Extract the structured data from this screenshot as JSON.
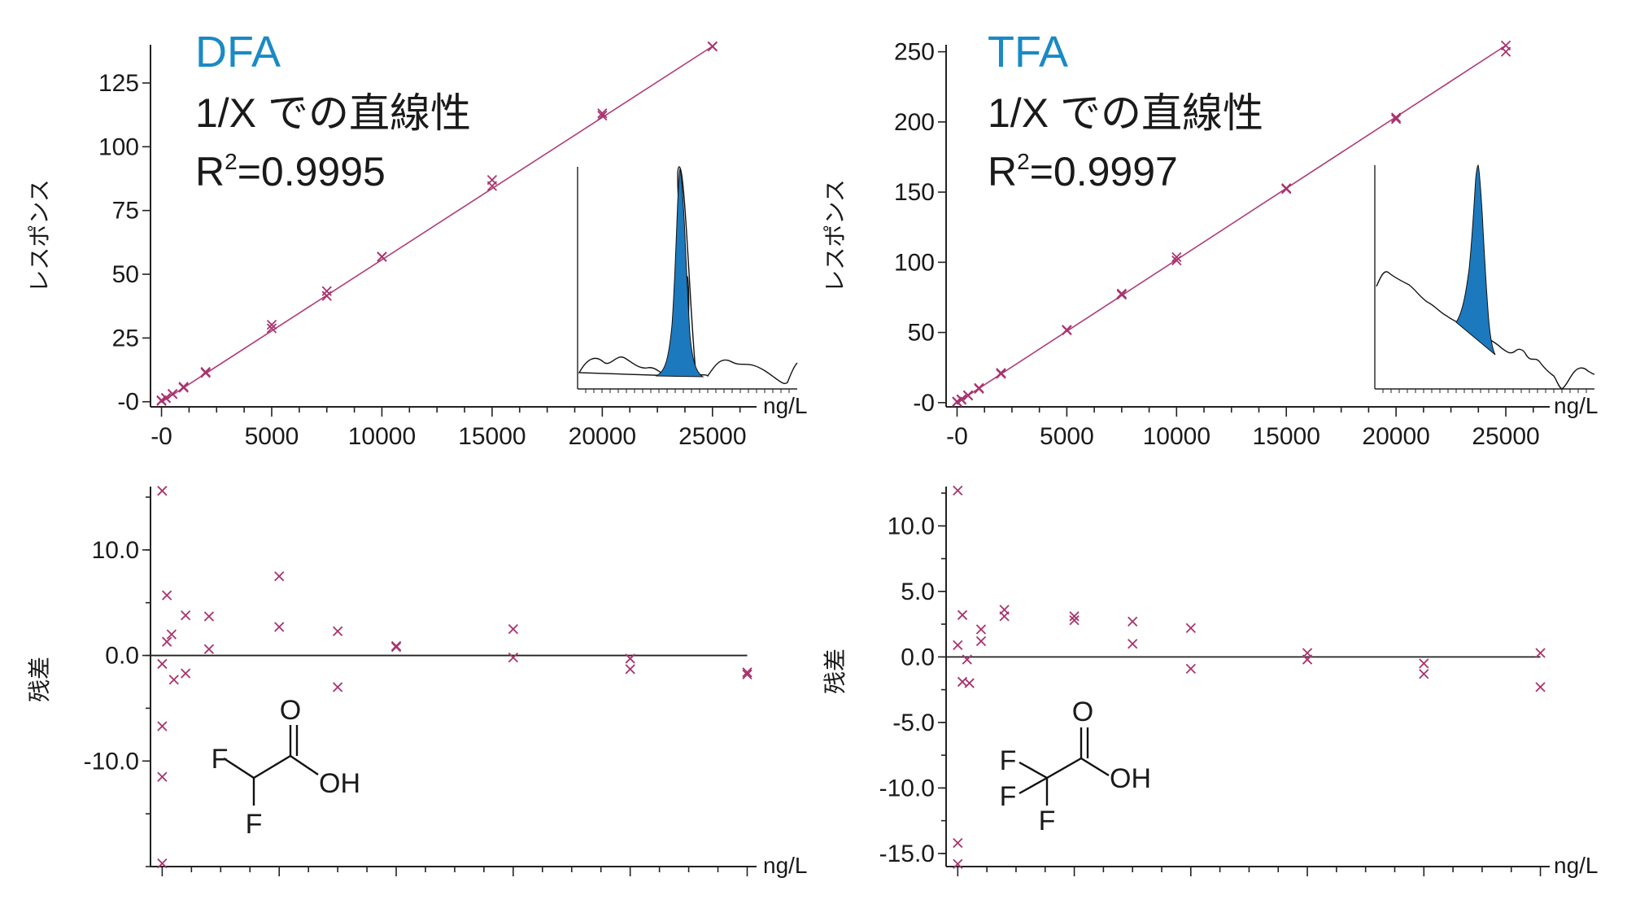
{
  "colors": {
    "title": "#1a8ac4",
    "marker": "#a8336e",
    "fit_line": "#b03a78",
    "peak_fill": "#1d79bd"
  },
  "chart_data": [
    {
      "id": "dfa_cal",
      "type": "scatter",
      "title": "DFA",
      "subtitle": "1/X での直線性",
      "r2_label": "R",
      "r2_sup": "2",
      "r2_value": "=0.9995",
      "xlabel": "ng/L",
      "ylabel": "レスポンス",
      "xlim": [
        -500,
        27000
      ],
      "ylim": [
        -2,
        140
      ],
      "xticks": [
        0,
        5000,
        10000,
        15000,
        20000,
        25000
      ],
      "xtick_labels": [
        "-0",
        "5000",
        "10000",
        "15000",
        "20000",
        "25000"
      ],
      "yticks": [
        0,
        25,
        50,
        75,
        100,
        125
      ],
      "ytick_labels": [
        "-0",
        "25",
        "50",
        "75",
        "100",
        "125"
      ],
      "fit_line": {
        "slope": 0.00558,
        "intercept": -0.1,
        "x_range": [
          0,
          25000
        ]
      },
      "x": [
        0,
        0,
        200,
        200,
        500,
        500,
        1000,
        1000,
        2000,
        2000,
        5000,
        5000,
        7500,
        7500,
        10000,
        10000,
        15000,
        15000,
        20000,
        20000,
        25000,
        25000
      ],
      "y": [
        0.3,
        0.6,
        1.4,
        1.5,
        3.0,
        3.1,
        5.5,
        5.9,
        11.3,
        11.7,
        28.8,
        30.2,
        41.5,
        43.4,
        56.8,
        56.9,
        84.6,
        87.0,
        112.2,
        113.1,
        139.3,
        139.4
      ],
      "inset": "chromatogram with single shaded peak"
    },
    {
      "id": "tfa_cal",
      "type": "scatter",
      "title": "TFA",
      "subtitle": "1/X での直線性",
      "r2_label": "R",
      "r2_sup": "2",
      "r2_value": "=0.9997",
      "xlabel": "ng/L",
      "ylabel": "レスポンス",
      "xlim": [
        -500,
        27000
      ],
      "ylim": [
        -3,
        255
      ],
      "xticks": [
        0,
        5000,
        10000,
        15000,
        20000,
        25000
      ],
      "xtick_labels": [
        "-0",
        "5000",
        "10000",
        "15000",
        "20000",
        "25000"
      ],
      "yticks": [
        0,
        50,
        100,
        150,
        200,
        250
      ],
      "ytick_labels": [
        "-0",
        "50",
        "100",
        "150",
        "200",
        "250"
      ],
      "fit_line": {
        "slope": 0.01018,
        "intercept": 0.0,
        "x_range": [
          0,
          25000
        ]
      },
      "x": [
        0,
        0,
        200,
        200,
        500,
        500,
        1000,
        1000,
        2000,
        2000,
        5000,
        5000,
        7500,
        7500,
        10000,
        10000,
        15000,
        15000,
        20000,
        20000,
        25000,
        25000
      ],
      "y": [
        0.5,
        0.8,
        2.0,
        2.4,
        5.0,
        5.3,
        9.8,
        10.5,
        20.5,
        21.2,
        51.5,
        51.9,
        76.9,
        77.7,
        101.3,
        103.7,
        152.2,
        152.8,
        202.0,
        203.2,
        250.0,
        254.5
      ],
      "inset": "chromatogram with shaded peak on sloping baseline"
    },
    {
      "id": "dfa_resid",
      "type": "scatter",
      "xlabel": "ng/L",
      "ylabel": "残差",
      "xlim": [
        -500,
        25400
      ],
      "ylim": [
        -20,
        16
      ],
      "yticks": [
        -10,
        0,
        10
      ],
      "ytick_labels": [
        "-10.0",
        "0.0",
        "10.0"
      ],
      "x": [
        0,
        0,
        0,
        0,
        0,
        200,
        200,
        400,
        500,
        1000,
        1000,
        2000,
        2000,
        5000,
        5000,
        7500,
        7500,
        10000,
        10000,
        15000,
        15000,
        20000,
        20000,
        25000,
        25000
      ],
      "y": [
        15.6,
        -0.8,
        -6.7,
        -11.5,
        -19.7,
        5.7,
        1.3,
        2.0,
        -2.3,
        3.8,
        -1.7,
        3.7,
        0.6,
        7.5,
        2.7,
        2.3,
        -3.0,
        0.9,
        0.8,
        2.5,
        -0.2,
        -0.3,
        -1.3,
        -1.6,
        -1.8
      ]
    },
    {
      "id": "tfa_resid",
      "type": "scatter",
      "xlabel": "ng/L",
      "ylabel": "残差",
      "xlim": [
        -500,
        25400
      ],
      "ylim": [
        -16,
        13
      ],
      "yticks": [
        -15,
        -10,
        -5,
        0,
        5,
        10
      ],
      "ytick_labels": [
        "-15.0",
        "-10.0",
        "-5.0",
        "0.0",
        "5.0",
        "10.0"
      ],
      "x": [
        0,
        0,
        0,
        0,
        200,
        200,
        400,
        500,
        1000,
        1000,
        2000,
        2000,
        5000,
        5000,
        7500,
        7500,
        10000,
        10000,
        15000,
        15000,
        20000,
        20000,
        25000,
        25000
      ],
      "y": [
        12.7,
        0.9,
        -14.2,
        -15.8,
        3.2,
        -1.9,
        -0.2,
        -2.0,
        2.1,
        1.2,
        3.6,
        3.1,
        3.1,
        2.8,
        2.7,
        1.0,
        2.2,
        -0.9,
        0.3,
        -0.2,
        -0.5,
        -1.3,
        0.3,
        -2.3
      ]
    }
  ],
  "structures": {
    "dfa": {
      "o": "O",
      "f1": "F",
      "f2": "F",
      "oh": "OH"
    },
    "tfa": {
      "o": "O",
      "f1": "F",
      "f2": "F",
      "f3": "F",
      "oh": "OH"
    }
  }
}
